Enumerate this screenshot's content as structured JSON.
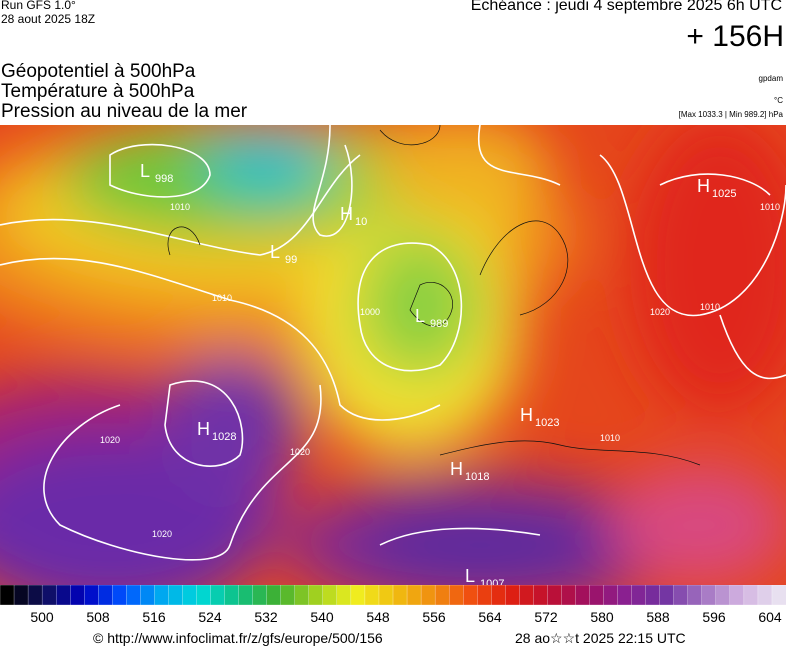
{
  "header": {
    "run": "Run GFS 1.0°",
    "run_date": "28 aout 2025 18Z",
    "valid": "Echéance : jeudi 4 septembre 2025 6h UTC",
    "lead": "+ 156H",
    "fields": [
      "Géopotentiel à 500hPa",
      "Température à 500hPa",
      "Pression au niveau de la mer"
    ],
    "units": [
      "gpdam",
      "°C"
    ],
    "range": "[Max 1033.3 | Min 989.2] hPa"
  },
  "centers": [
    {
      "letter": "L",
      "value": "998"
    },
    {
      "letter": "H",
      "value": "10"
    },
    {
      "letter": "L",
      "value": "99"
    },
    {
      "letter": "L",
      "value": "989"
    },
    {
      "letter": "H",
      "value": "1025"
    },
    {
      "letter": "H",
      "value": "1028"
    },
    {
      "letter": "H",
      "value": "1023"
    },
    {
      "letter": "H",
      "value": "1018"
    },
    {
      "letter": "L",
      "value": "1007"
    }
  ],
  "isobar_labels": [
    "1010",
    "1010",
    "1020",
    "1020",
    "1020",
    "1010",
    "1010",
    "1000",
    "1020",
    "1010"
  ],
  "colorbar": {
    "labels": [
      500,
      508,
      516,
      524,
      532,
      540,
      548,
      556,
      564,
      572,
      580,
      588,
      596,
      604
    ]
  },
  "footer": {
    "url": "© http://www.infoclimat.fr/z/gfs/europe/500/156",
    "generated": "28 ao☆☆t 2025 22:15 UTC"
  }
}
